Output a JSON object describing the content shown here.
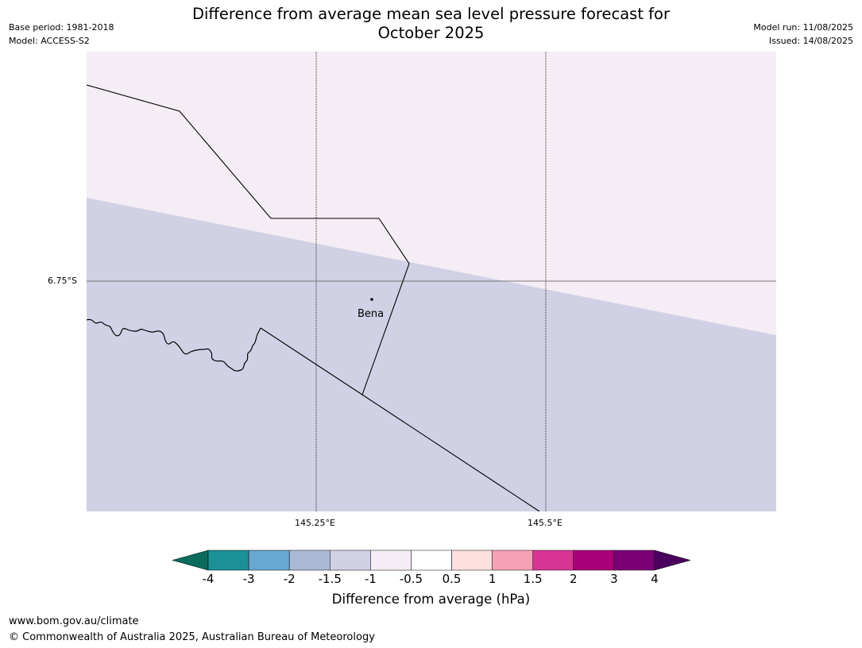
{
  "title_line1": "Difference from average mean sea level pressure forecast for",
  "title_line2": "October 2025",
  "meta": {
    "base_period": "Base period: 1981-2018",
    "model": "Model: ACCESS-S2",
    "model_run": "Model run: 11/08/2025",
    "issued": "Issued: 14/08/2025"
  },
  "map": {
    "fill_colors": {
      "upper": "#f5edf5",
      "lower": "#d1d1e5"
    },
    "lat_label": "6.75°S",
    "lon_labels": [
      "145.25°E",
      "145.5°E"
    ],
    "place": "Bena"
  },
  "colorbar": {
    "ticks": [
      "-4",
      "-3",
      "-2",
      "-1.5",
      "-1",
      "-0.5",
      "0.5",
      "1",
      "1.5",
      "2",
      "3",
      "4"
    ],
    "colors": [
      "#0b6b5c",
      "#1b9196",
      "#69a8d0",
      "#aab9d6",
      "#d1d1e5",
      "#f5edf5",
      "#ffffff",
      "#fde0df",
      "#f7a1b6",
      "#d93594",
      "#aa0077",
      "#7b0078",
      "#4b0060"
    ],
    "label": "Difference from average (hPa)"
  },
  "footer": {
    "url": "www.bom.gov.au/climate",
    "copyright": "© Commonwealth of Australia 2025, Australian Bureau of Meteorology"
  }
}
